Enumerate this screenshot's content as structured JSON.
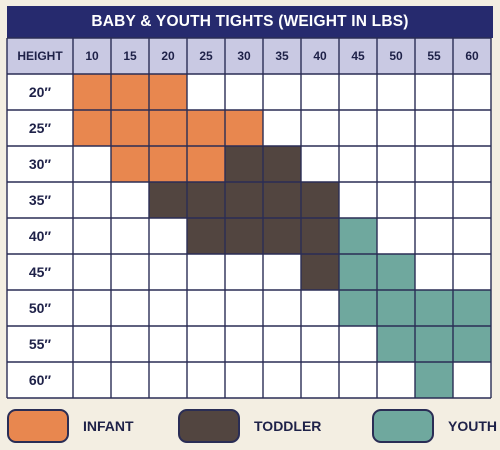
{
  "title": "BABY & YOUTH TIGHTS (WEIGHT IN LBS)",
  "colors": {
    "title_bg": "#262a6e",
    "header_bg": "#c9c9e3",
    "grid": "#2a2d55",
    "infant": "#e8874f",
    "toddler": "#524540",
    "youth": "#6fa89e",
    "empty": "#ffffff",
    "background": "#f3eee2"
  },
  "chart_data": {
    "type": "table",
    "title": "BABY & YOUTH TIGHTS (WEIGHT IN LBS)",
    "row_header": "HEIGHT",
    "columns": [
      "10",
      "15",
      "20",
      "25",
      "30",
      "35",
      "40",
      "45",
      "50",
      "55",
      "60"
    ],
    "rows": [
      "20″",
      "25″",
      "30″",
      "35″",
      "40″",
      "45″",
      "50″",
      "55″",
      "60″"
    ],
    "cells": [
      [
        "I",
        "I",
        "I",
        "",
        "",
        "",
        "",
        "",
        "",
        "",
        ""
      ],
      [
        "I",
        "I",
        "I",
        "I",
        "I",
        "",
        "",
        "",
        "",
        "",
        ""
      ],
      [
        "",
        "I",
        "I",
        "I",
        "T",
        "T",
        "",
        "",
        "",
        "",
        ""
      ],
      [
        "",
        "",
        "T",
        "T",
        "T",
        "T",
        "T",
        "",
        "",
        "",
        ""
      ],
      [
        "",
        "",
        "",
        "T",
        "T",
        "T",
        "T",
        "Y",
        "",
        "",
        ""
      ],
      [
        "",
        "",
        "",
        "",
        "",
        "",
        "T",
        "Y",
        "Y",
        "",
        ""
      ],
      [
        "",
        "",
        "",
        "",
        "",
        "",
        "",
        "Y",
        "Y",
        "Y",
        "Y"
      ],
      [
        "",
        "",
        "",
        "",
        "",
        "",
        "",
        "",
        "Y",
        "Y",
        "Y"
      ],
      [
        "",
        "",
        "",
        "",
        "",
        "",
        "",
        "",
        "",
        "Y",
        ""
      ]
    ],
    "size_codes": {
      "I": "infant",
      "T": "toddler",
      "Y": "youth"
    }
  },
  "legend": {
    "infant": "INFANT",
    "toddler": "TODDLER",
    "youth": "YOUTH"
  }
}
